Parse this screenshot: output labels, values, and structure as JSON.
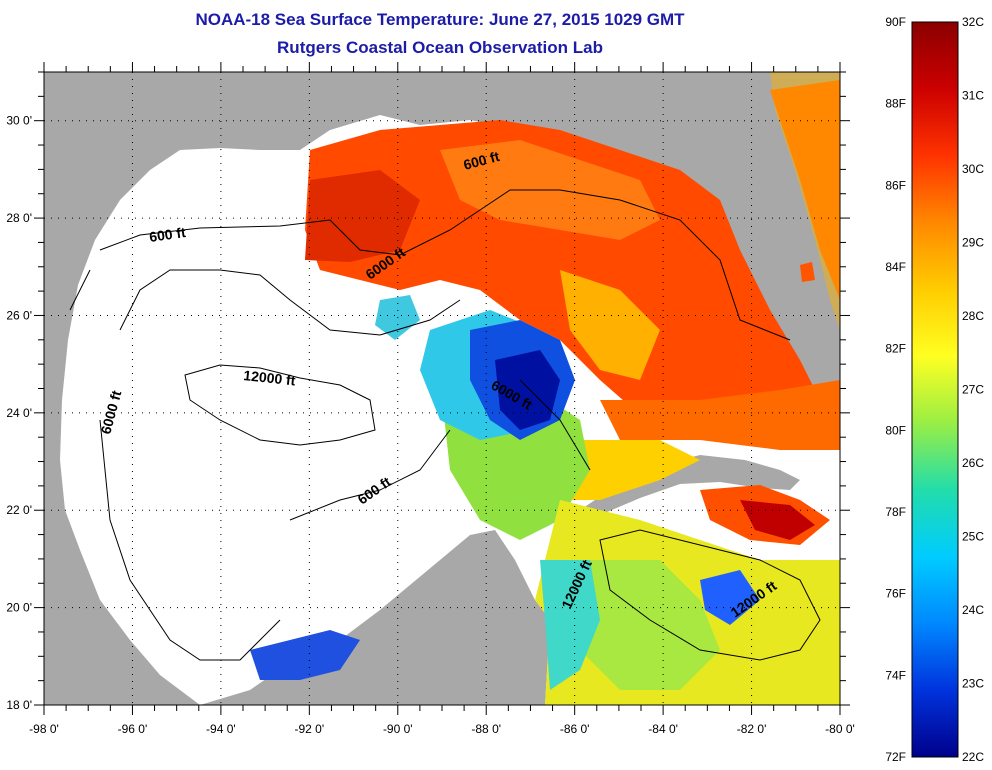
{
  "title": "NOAA-18 Sea Surface Temperature:  June 27, 2015 1029 GMT",
  "subtitle": "Rutgers Coastal Ocean Observation Lab",
  "map": {
    "lon_range": [
      -98,
      -80
    ],
    "lat_range": [
      18,
      31
    ],
    "lon_ticks": [
      "-98 0'",
      "-96 0'",
      "-94 0'",
      "-92 0'",
      "-90 0'",
      "-88 0'",
      "-86 0'",
      "-84 0'",
      "-82 0'",
      "-80 0'"
    ],
    "lat_ticks": [
      "18 0'",
      "20 0'",
      "22 0'",
      "24 0'",
      "26 0'",
      "28 0'",
      "30 0'"
    ],
    "land_color": "#a8a8a8",
    "no_data_color": "#ffffff",
    "contour_labels": [
      "600 ft",
      "600 ft",
      "6000 ft",
      "6000 ft",
      "12000 ft",
      "6000 ft",
      "600 ft",
      "12000 ft",
      "12000 ft"
    ]
  },
  "colorbar": {
    "f_labels": [
      "90F",
      "88F",
      "86F",
      "84F",
      "82F",
      "80F",
      "78F",
      "76F",
      "74F",
      "72F"
    ],
    "c_labels": [
      "32C",
      "31C",
      "30C",
      "29C",
      "28C",
      "27C",
      "26C",
      "25C",
      "24C",
      "23C",
      "22C"
    ],
    "colors": [
      "#8b0000",
      "#cc0000",
      "#ff3300",
      "#ff8800",
      "#ffcc00",
      "#ffff22",
      "#99ee44",
      "#22ddaa",
      "#00ccff",
      "#0088ff",
      "#0033dd",
      "#00008b"
    ]
  }
}
